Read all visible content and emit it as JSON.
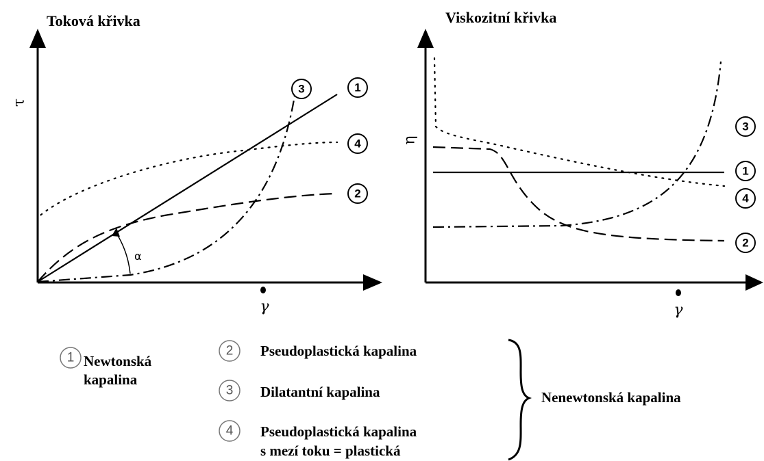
{
  "left_panel": {
    "title": "Toková křivka",
    "y_label": "τ",
    "x_label": "γ",
    "angle_label": "α",
    "curve_labels": [
      "3",
      "1",
      "4",
      "2"
    ]
  },
  "right_panel": {
    "title": "Viskozitní křivka",
    "y_label": "η",
    "x_label": "γ",
    "curve_labels": [
      "3",
      "1",
      "4",
      "2"
    ]
  },
  "legend": {
    "items": [
      {
        "number": "1",
        "text": [
          "Newtonská",
          "kapalina"
        ]
      },
      {
        "number": "2",
        "text": [
          "Pseudoplastická kapalina"
        ]
      },
      {
        "number": "3",
        "text": [
          "Dilatantní kapalina"
        ]
      },
      {
        "number": "4",
        "text": [
          "Pseudoplastická kapalina",
          "s mezí toku = plastická"
        ]
      }
    ],
    "group_label": "Nenewtonská kapalina"
  }
}
